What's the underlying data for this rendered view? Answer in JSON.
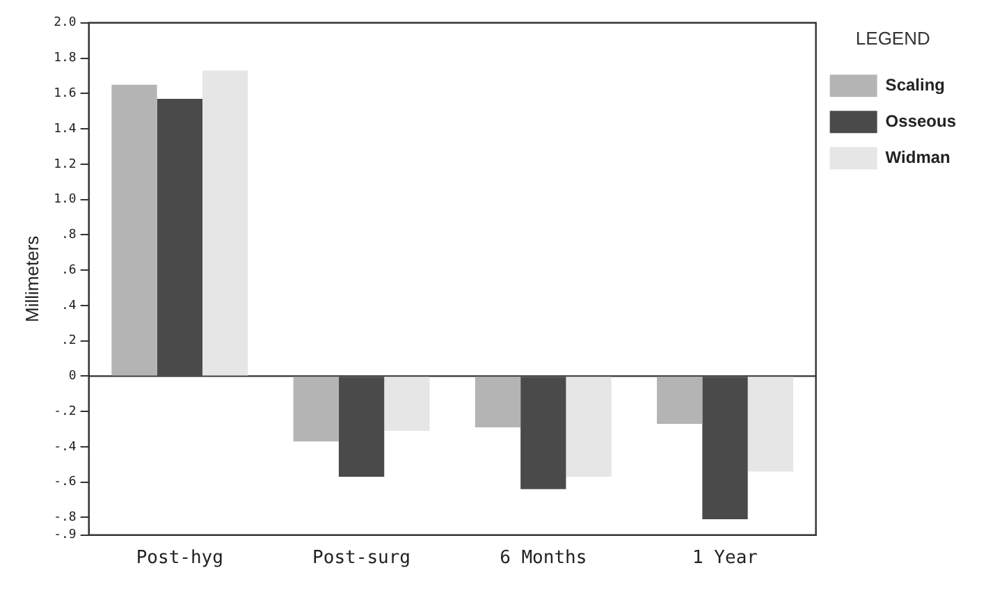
{
  "chart_data": {
    "type": "bar",
    "ylabel": "Millimeters",
    "legend_title": "LEGEND",
    "categories": [
      "Post-hyg",
      "Post-surg",
      "6 Months",
      "1 Year"
    ],
    "series": [
      {
        "name": "Scaling",
        "color": "#b4b4b4",
        "values": [
          1.65,
          -0.37,
          -0.29,
          -0.27
        ]
      },
      {
        "name": "Osseous",
        "color": "#4a4a4a",
        "values": [
          1.57,
          -0.57,
          -0.64,
          -0.81
        ]
      },
      {
        "name": "Widman",
        "color": "#e6e6e6",
        "values": [
          1.73,
          -0.31,
          -0.57,
          -0.54
        ]
      }
    ],
    "ylim": [
      -0.9,
      2.0
    ],
    "yticks": [
      {
        "value": 2.0,
        "label": "2.0"
      },
      {
        "value": 1.8,
        "label": "1.8"
      },
      {
        "value": 1.6,
        "label": "1.6"
      },
      {
        "value": 1.4,
        "label": "1.4"
      },
      {
        "value": 1.2,
        "label": "1.2"
      },
      {
        "value": 1.0,
        "label": "1.0"
      },
      {
        "value": 0.8,
        "label": ".8"
      },
      {
        "value": 0.6,
        "label": ".6"
      },
      {
        "value": 0.4,
        "label": ".4"
      },
      {
        "value": 0.2,
        "label": ".2"
      },
      0,
      {
        "value": -0.2,
        "label": "-.2"
      },
      {
        "value": -0.4,
        "label": "-.4"
      },
      {
        "value": -0.6,
        "label": "-.6"
      },
      {
        "value": -0.8,
        "label": "-.8"
      },
      {
        "value": -0.9,
        "label": "-.9"
      }
    ],
    "ref_lines": [
      {
        "axis": "y",
        "value": 0,
        "color": "#333333"
      }
    ],
    "legend": "top right",
    "grid": false
  }
}
